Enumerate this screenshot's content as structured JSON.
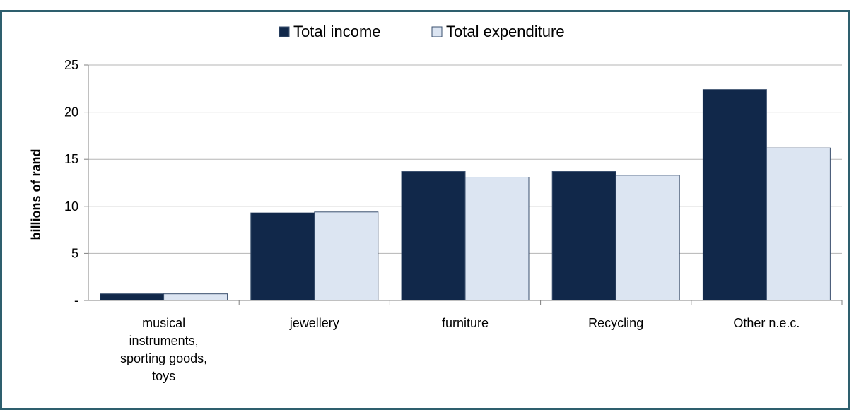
{
  "title": "",
  "chart_data": {
    "type": "bar",
    "title": "",
    "xlabel": "",
    "ylabel": "billions of rand",
    "ylim": [
      0,
      25
    ],
    "yticks": [
      {
        "value": 0,
        "label": "-"
      },
      {
        "value": 5,
        "label": "5"
      },
      {
        "value": 10,
        "label": "10"
      },
      {
        "value": 15,
        "label": "15"
      },
      {
        "value": 20,
        "label": "20"
      },
      {
        "value": 25,
        "label": "25"
      }
    ],
    "grid": true,
    "legend_position": "top-center",
    "categories": [
      [
        "musical",
        "instruments,",
        "sporting goods,",
        "toys"
      ],
      [
        "jewellery"
      ],
      [
        "furniture"
      ],
      [
        "Recycling"
      ],
      [
        "Other n.e.c."
      ]
    ],
    "series": [
      {
        "name": "Total income",
        "color": "#11284a",
        "values": [
          0.7,
          9.3,
          13.7,
          13.7,
          22.4
        ]
      },
      {
        "name": "Total expenditure",
        "color": "#dce5f2",
        "values": [
          0.7,
          9.4,
          13.1,
          13.3,
          16.2
        ]
      }
    ]
  }
}
